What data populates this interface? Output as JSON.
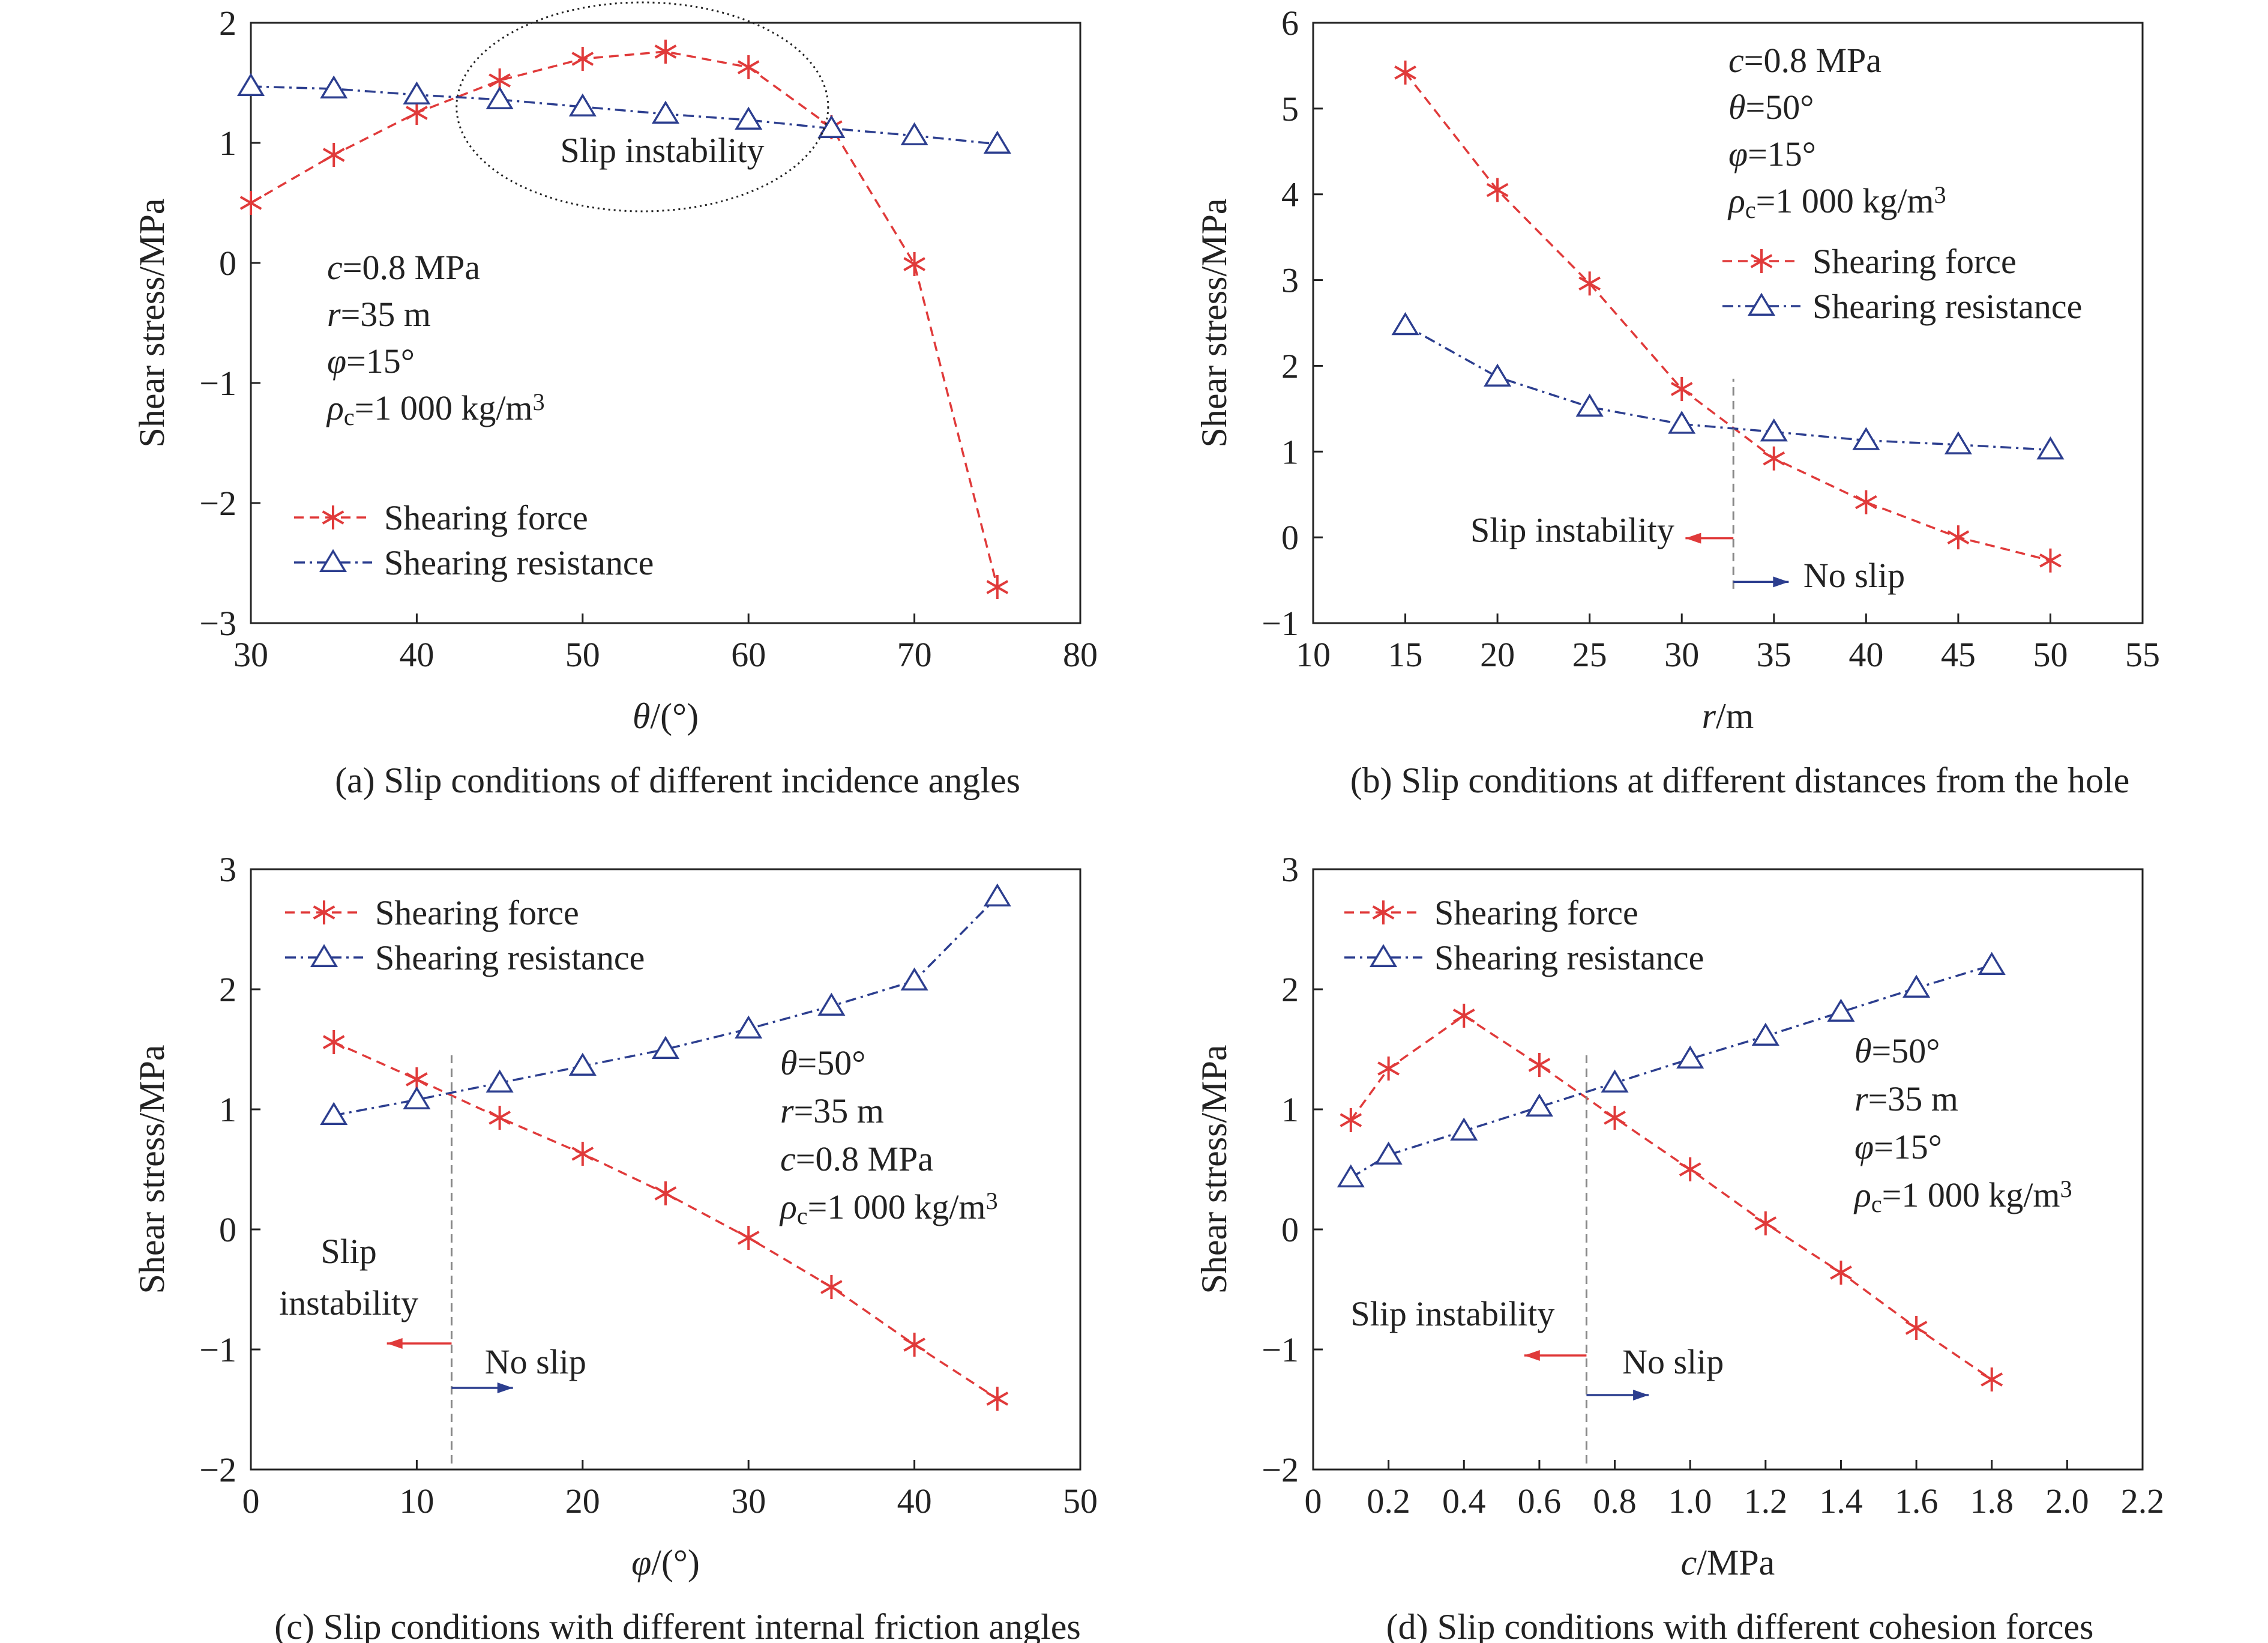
{
  "figure": {
    "panels": [
      {
        "id": "a",
        "caption": "(a) Slip conditions of different incidence angles",
        "legend_position": "bottom-left",
        "legend_labels": [
          "Shearing force",
          "Shearing resistance"
        ],
        "params": [
          [
            {
              "t": "c",
              "i": true
            },
            {
              "t": "=0.8 MPa"
            }
          ],
          [
            {
              "t": "r",
              "i": true
            },
            {
              "t": "=35 m"
            }
          ],
          [
            {
              "t": "φ",
              "i": true
            },
            {
              "t": "=15°"
            }
          ],
          [
            {
              "t": "ρ",
              "i": true
            },
            {
              "t": "c",
              "sub": true
            },
            {
              "t": "=1 000 kg/m"
            },
            {
              "t": "3",
              "sup": true
            }
          ]
        ],
        "annotations": [
          {
            "kind": "ellipse",
            "cx": 53.6,
            "cy": 1.3,
            "rx": 11.2,
            "ry": 0.87
          },
          {
            "kind": "text",
            "text": "Slip instability",
            "x": 54.8,
            "y": 0.84,
            "anchor": "middle"
          }
        ]
      },
      {
        "id": "b",
        "caption": "(b) Slip conditions at different distances from the hole",
        "legend_position": "top-right",
        "legend_labels": [
          "Shearing force",
          "Shearing resistance"
        ],
        "params": [
          [
            {
              "t": "c",
              "i": true
            },
            {
              "t": "=0.8 MPa"
            }
          ],
          [
            {
              "t": "θ",
              "i": true
            },
            {
              "t": "=50°"
            }
          ],
          [
            {
              "t": "φ",
              "i": true
            },
            {
              "t": "=15°"
            }
          ],
          [
            {
              "t": "ρ",
              "i": true
            },
            {
              "t": "c",
              "sub": true
            },
            {
              "t": "=1 000 kg/m"
            },
            {
              "t": "3",
              "sup": true
            }
          ]
        ],
        "annotations": [
          {
            "kind": "vline",
            "x": 32.8,
            "y1": -0.6,
            "y2": 1.85
          },
          {
            "kind": "text",
            "text": "Slip instability",
            "x": 29.6,
            "y": -0.05,
            "anchor": "end"
          },
          {
            "kind": "arrow",
            "color": "red",
            "x1": 32.8,
            "x2": 30.2,
            "y": -0.01
          },
          {
            "kind": "arrow",
            "color": "blue",
            "x1": 32.8,
            "x2": 35.8,
            "y": -0.52
          },
          {
            "kind": "text",
            "text": "No slip",
            "x": 36.6,
            "y": -0.58,
            "anchor": "start"
          }
        ]
      },
      {
        "id": "c",
        "caption": "(c) Slip conditions with different internal friction angles",
        "legend_position": "top-left",
        "legend_labels": [
          "Shearing force",
          "Shearing resistance"
        ],
        "params": [
          [
            {
              "t": "θ",
              "i": true
            },
            {
              "t": "=50°"
            }
          ],
          [
            {
              "t": "r",
              "i": true
            },
            {
              "t": "=35 m"
            }
          ],
          [
            {
              "t": "c",
              "i": true
            },
            {
              "t": "=0.8 MPa"
            }
          ],
          [
            {
              "t": "ρ",
              "i": true
            },
            {
              "t": "c",
              "sub": true
            },
            {
              "t": "=1 000 kg/m"
            },
            {
              "t": "3",
              "sup": true
            }
          ]
        ],
        "annotations": [
          {
            "kind": "vline",
            "x": 12.1,
            "y1": -1.95,
            "y2": 1.45
          },
          {
            "kind": "text",
            "text": "Slip",
            "x": 5.9,
            "y": -0.28,
            "anchor": "middle"
          },
          {
            "kind": "text",
            "text": "instability",
            "x": 5.9,
            "y": -0.71,
            "anchor": "middle"
          },
          {
            "kind": "arrow",
            "color": "red",
            "x1": 12.1,
            "x2": 8.2,
            "y": -0.95
          },
          {
            "kind": "text",
            "text": "No slip",
            "x": 14.1,
            "y": -1.2,
            "anchor": "start"
          },
          {
            "kind": "arrow",
            "color": "blue",
            "x1": 12.1,
            "x2": 15.8,
            "y": -1.32
          }
        ]
      },
      {
        "id": "d",
        "caption": "(d) Slip conditions with different cohesion forces",
        "legend_position": "top-left",
        "legend_labels": [
          "Shearing force",
          "Shearing resistance"
        ],
        "params": [
          [
            {
              "t": "θ",
              "i": true
            },
            {
              "t": "=50°"
            }
          ],
          [
            {
              "t": "r",
              "i": true
            },
            {
              "t": "=35 m"
            }
          ],
          [
            {
              "t": "φ",
              "i": true
            },
            {
              "t": "=15°"
            }
          ],
          [
            {
              "t": "ρ",
              "i": true
            },
            {
              "t": "c",
              "sub": true
            },
            {
              "t": "=1 000 kg/m"
            },
            {
              "t": "3",
              "sup": true
            }
          ]
        ],
        "annotations": [
          {
            "kind": "vline",
            "x": 0.725,
            "y1": -1.95,
            "y2": 1.45
          },
          {
            "kind": "text",
            "text": "Slip instability",
            "x": 0.37,
            "y": -0.8,
            "anchor": "middle"
          },
          {
            "kind": "arrow",
            "color": "red",
            "x1": 0.725,
            "x2": 0.56,
            "y": -1.05
          },
          {
            "kind": "text",
            "text": "No slip",
            "x": 0.82,
            "y": -1.2,
            "anchor": "start"
          },
          {
            "kind": "arrow",
            "color": "blue",
            "x1": 0.725,
            "x2": 0.89,
            "y": -1.38
          }
        ]
      }
    ]
  },
  "chart_data": [
    {
      "type": "line",
      "xlabel": "θ/(°)",
      "ylabel": "Shear stress/MPa",
      "xlim": [
        30,
        80
      ],
      "ylim": [
        -3,
        2
      ],
      "xticks": [
        30,
        40,
        50,
        60,
        70,
        80
      ],
      "xtick_labels": [
        "30",
        "40",
        "50",
        "60",
        "70",
        "80"
      ],
      "yticks": [
        -3,
        -2,
        -1,
        0,
        1,
        2
      ],
      "ytick_labels": [
        "−3",
        "−2",
        "−1",
        "0",
        "1",
        "2"
      ],
      "grid": false,
      "series": [
        {
          "name": "Shearing force",
          "marker": "asterisk",
          "color": "#e03a3a",
          "x": [
            30,
            35,
            40,
            45,
            50,
            55,
            60,
            65,
            70,
            75
          ],
          "y": [
            0.5,
            0.9,
            1.25,
            1.52,
            1.7,
            1.76,
            1.63,
            1.13,
            -0.01,
            -2.7
          ]
        },
        {
          "name": "Shearing resistance",
          "marker": "triangle",
          "color": "#2c3e8f",
          "x": [
            30,
            35,
            40,
            45,
            50,
            55,
            60,
            65,
            70,
            75
          ],
          "y": [
            1.47,
            1.45,
            1.4,
            1.36,
            1.3,
            1.24,
            1.19,
            1.12,
            1.06,
            0.99
          ]
        }
      ]
    },
    {
      "type": "line",
      "xlabel": "r/m",
      "ylabel": "Shear stress/MPa",
      "xlim": [
        10,
        55
      ],
      "ylim": [
        -1,
        6
      ],
      "xticks": [
        10,
        15,
        20,
        25,
        30,
        35,
        40,
        45,
        50,
        55
      ],
      "xtick_labels": [
        "10",
        "15",
        "20",
        "25",
        "30",
        "35",
        "40",
        "45",
        "50",
        "55"
      ],
      "yticks": [
        -1,
        0,
        1,
        2,
        3,
        4,
        5,
        6
      ],
      "ytick_labels": [
        "−1",
        "0",
        "1",
        "2",
        "3",
        "4",
        "5",
        "6"
      ],
      "grid": false,
      "series": [
        {
          "name": "Shearing force",
          "marker": "asterisk",
          "color": "#e03a3a",
          "x": [
            15,
            20,
            25,
            30,
            35,
            40,
            45,
            50
          ],
          "y": [
            5.42,
            4.05,
            2.96,
            1.73,
            0.92,
            0.41,
            0.0,
            -0.27
          ]
        },
        {
          "name": "Shearing resistance",
          "marker": "triangle",
          "color": "#2c3e8f",
          "x": [
            15,
            20,
            25,
            30,
            35,
            40,
            45,
            50
          ],
          "y": [
            2.47,
            1.87,
            1.52,
            1.32,
            1.23,
            1.13,
            1.08,
            1.02
          ]
        }
      ]
    },
    {
      "type": "line",
      "xlabel": "φ/(°)",
      "ylabel": "Shear stress/MPa",
      "xlim": [
        0,
        50
      ],
      "ylim": [
        -2,
        3
      ],
      "xticks": [
        0,
        10,
        20,
        30,
        40,
        50
      ],
      "xtick_labels": [
        "0",
        "10",
        "20",
        "30",
        "40",
        "50"
      ],
      "yticks": [
        -2,
        -1,
        0,
        1,
        2,
        3
      ],
      "ytick_labels": [
        "−2",
        "−1",
        "0",
        "1",
        "2",
        "3"
      ],
      "grid": false,
      "series": [
        {
          "name": "Shearing force",
          "marker": "asterisk",
          "color": "#e03a3a",
          "x": [
            5,
            10,
            15,
            20,
            25,
            30,
            35,
            40,
            45
          ],
          "y": [
            1.56,
            1.25,
            0.93,
            0.63,
            0.3,
            -0.07,
            -0.48,
            -0.96,
            -1.41
          ]
        },
        {
          "name": "Shearing resistance",
          "marker": "triangle",
          "color": "#2c3e8f",
          "x": [
            5,
            10,
            15,
            20,
            25,
            30,
            35,
            40,
            45
          ],
          "y": [
            0.95,
            1.08,
            1.22,
            1.36,
            1.5,
            1.67,
            1.86,
            2.07,
            2.77
          ]
        }
      ]
    },
    {
      "type": "line",
      "xlabel": "c/MPa",
      "ylabel": "Shear stress/MPa",
      "xlim": [
        0,
        2.2
      ],
      "ylim": [
        -2,
        3
      ],
      "xticks": [
        0,
        0.2,
        0.4,
        0.6,
        0.8,
        1.0,
        1.2,
        1.4,
        1.6,
        1.8,
        2.0,
        2.2
      ],
      "xtick_labels": [
        "0",
        "0.2",
        "0.4",
        "0.6",
        "0.8",
        "1.0",
        "1.2",
        "1.4",
        "1.6",
        "1.8",
        "2.0",
        "2.2"
      ],
      "yticks": [
        -2,
        -1,
        0,
        1,
        2,
        3
      ],
      "ytick_labels": [
        "−2",
        "−1",
        "0",
        "1",
        "2",
        "3"
      ],
      "grid": false,
      "series": [
        {
          "name": "Shearing force",
          "marker": "asterisk",
          "color": "#e03a3a",
          "x": [
            0.1,
            0.2,
            0.4,
            0.6,
            0.8,
            1.0,
            1.2,
            1.4,
            1.6,
            1.8
          ],
          "y": [
            0.91,
            1.34,
            1.78,
            1.37,
            0.93,
            0.5,
            0.05,
            -0.36,
            -0.82,
            -1.25
          ]
        },
        {
          "name": "Shearing resistance",
          "marker": "triangle",
          "color": "#2c3e8f",
          "x": [
            0.1,
            0.2,
            0.4,
            0.6,
            0.8,
            1.0,
            1.2,
            1.4,
            1.6,
            1.8
          ],
          "y": [
            0.43,
            0.62,
            0.82,
            1.02,
            1.22,
            1.42,
            1.61,
            1.81,
            2.01,
            2.2
          ]
        }
      ]
    }
  ]
}
